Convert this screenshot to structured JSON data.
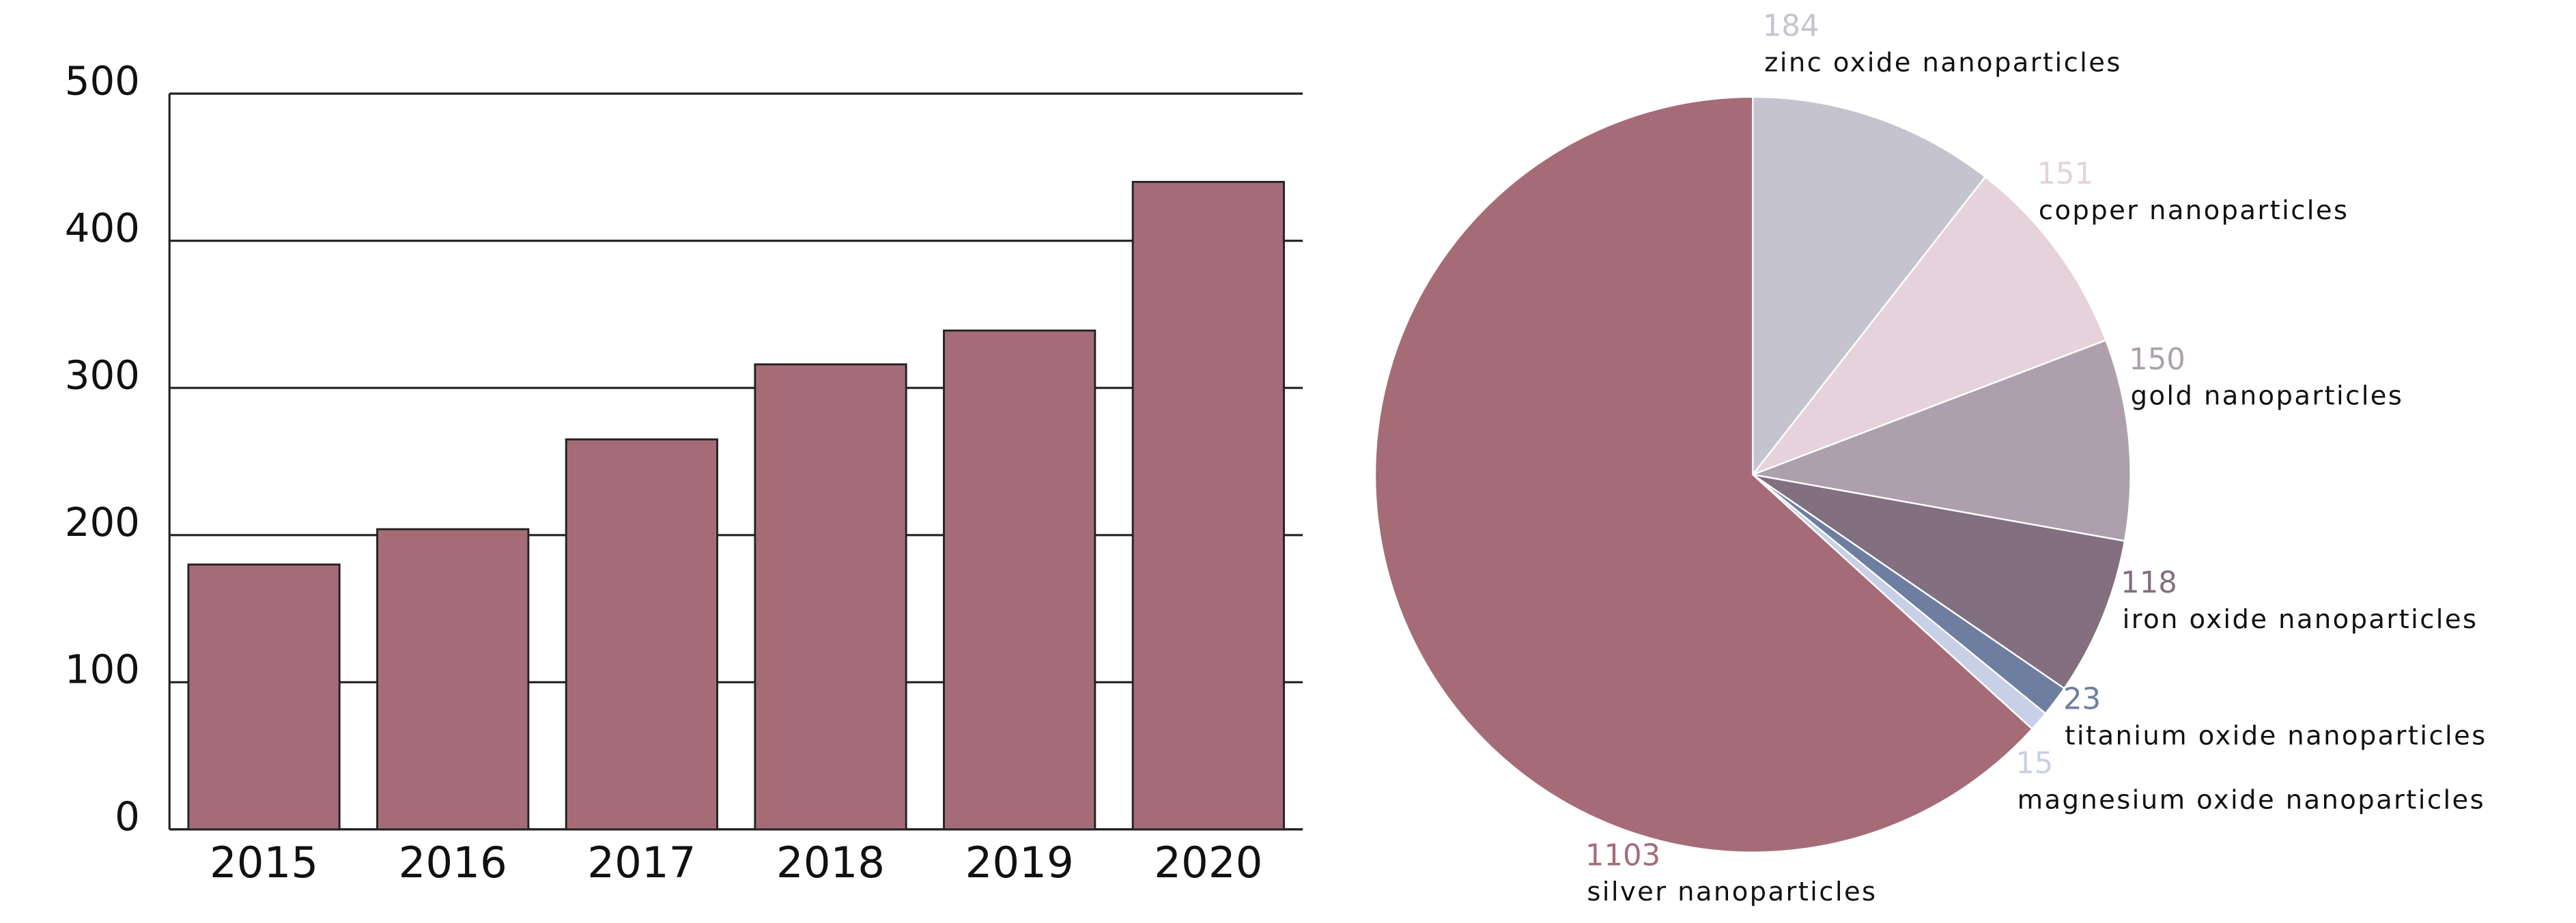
{
  "chart_data": [
    {
      "type": "bar",
      "categories": [
        "2015",
        "2016",
        "2017",
        "2018",
        "2019",
        "2020"
      ],
      "values": [
        180,
        204,
        265,
        316,
        339,
        440
      ],
      "color": "#a56c78",
      "ylim": [
        0,
        500
      ],
      "yticks": [
        0,
        100,
        200,
        300,
        400,
        500
      ],
      "grid": true
    },
    {
      "type": "pie",
      "categories": [
        "zinc oxide nanoparticles",
        "copper nanoparticles",
        "gold nanoparticles",
        "iron oxide nanoparticles",
        "titanium oxide nanoparticles",
        "magnesium oxide nanoparticles",
        "silver nanoparticles"
      ],
      "values": [
        184,
        151,
        150,
        118,
        23,
        15,
        1103
      ],
      "colors": [
        "#c5c3cf",
        "#e6d2da",
        "#ada0ac",
        "#826f80",
        "#6e7ea0",
        "#c8d0e8",
        "#a56c78"
      ]
    }
  ]
}
